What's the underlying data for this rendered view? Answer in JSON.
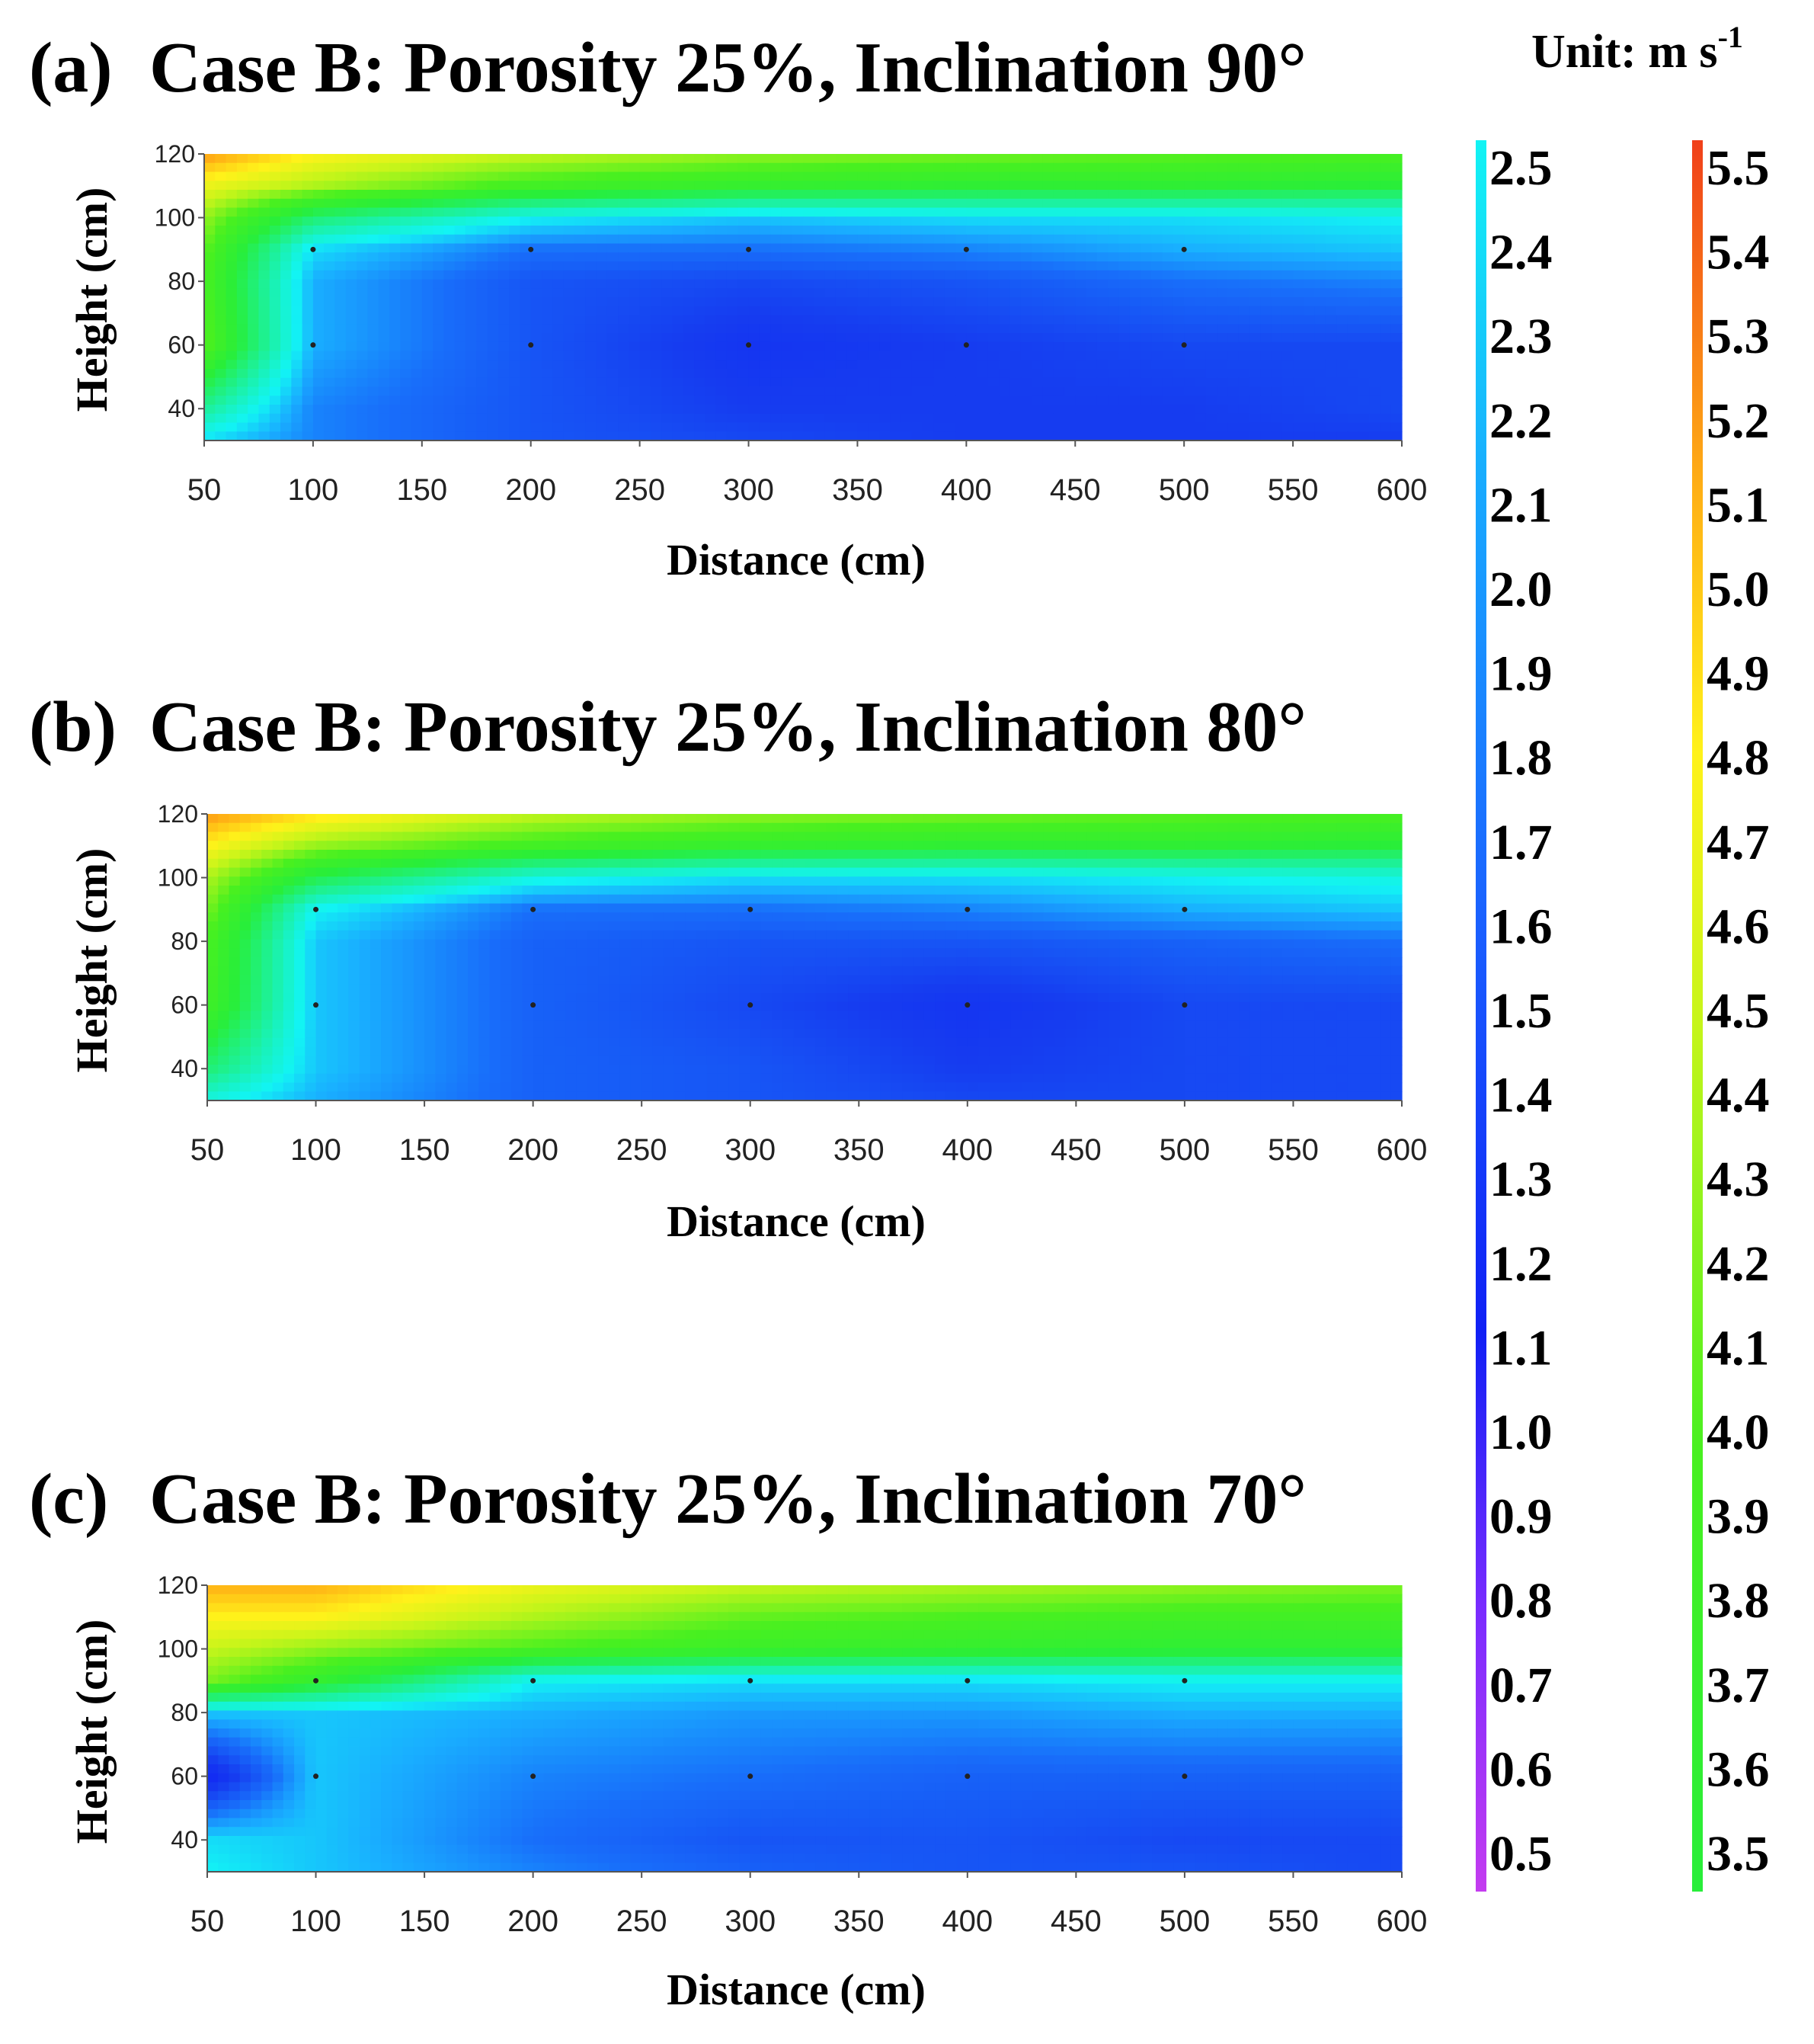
{
  "figure": {
    "unit_label": "Unit: m s",
    "unit_exponent": "-1"
  },
  "colorbars": {
    "low": {
      "ticks": [
        "2.5",
        "2.4",
        "2.3",
        "2.2",
        "2.1",
        "2.0",
        "1.9",
        "1.8",
        "1.7",
        "1.6",
        "1.5",
        "1.4",
        "1.3",
        "1.2",
        "1.1",
        "1.0",
        "0.9",
        "0.8",
        "0.7",
        "0.6",
        "0.5"
      ],
      "range": [
        0.5,
        2.5
      ]
    },
    "high": {
      "ticks": [
        "5.5",
        "5.4",
        "5.3",
        "5.2",
        "5.1",
        "5.0",
        "4.9",
        "4.8",
        "4.7",
        "4.6",
        "4.5",
        "4.4",
        "4.3",
        "4.2",
        "4.1",
        "4.0",
        "3.9",
        "3.8",
        "3.7",
        "3.6",
        "3.5"
      ],
      "range": [
        3.5,
        5.5
      ]
    }
  },
  "chart_data": [
    {
      "type": "heatmap",
      "panel_label": "(a)",
      "title": "Case B: Porosity 25%, Inclination 90°",
      "xlabel": "Distance (cm)",
      "ylabel": "Height (cm)",
      "xticks": [
        "50",
        "100",
        "150",
        "200",
        "250",
        "300",
        "350",
        "400",
        "450",
        "500",
        "550",
        "600"
      ],
      "yticks": [
        "120",
        "100",
        "80",
        "60",
        "40"
      ],
      "xlim": [
        50,
        600
      ],
      "ylim": [
        30,
        120
      ],
      "x": [
        50,
        100,
        200,
        300,
        400,
        500,
        600
      ],
      "y": [
        120,
        110,
        100,
        90,
        80,
        60,
        40,
        30
      ],
      "z": [
        [
          5.2,
          4.8,
          4.5,
          4.3,
          4.2,
          4.1,
          4.0
        ],
        [
          4.7,
          4.4,
          3.9,
          3.7,
          3.6,
          3.6,
          3.5
        ],
        [
          4.3,
          3.2,
          2.5,
          2.3,
          2.4,
          2.4,
          2.5
        ],
        [
          4.1,
          2.4,
          1.9,
          1.9,
          2.0,
          2.2,
          2.3
        ],
        [
          4.0,
          2.2,
          1.7,
          1.6,
          1.7,
          1.9,
          2.0
        ],
        [
          4.1,
          2.2,
          1.7,
          1.4,
          1.5,
          1.6,
          1.6
        ],
        [
          3.0,
          2.0,
          1.7,
          1.5,
          1.5,
          1.5,
          1.6
        ],
        [
          2.4,
          2.0,
          1.7,
          1.6,
          1.5,
          1.5,
          1.5
        ]
      ]
    },
    {
      "type": "heatmap",
      "panel_label": "(b)",
      "title": "Case B: Porosity 25%, Inclination 80°",
      "xlabel": "Distance (cm)",
      "ylabel": "Height (cm)",
      "xticks": [
        "50",
        "100",
        "150",
        "200",
        "250",
        "300",
        "350",
        "400",
        "450",
        "500",
        "550",
        "600"
      ],
      "yticks": [
        "120",
        "100",
        "80",
        "60",
        "40"
      ],
      "xlim": [
        50,
        600
      ],
      "ylim": [
        30,
        120
      ],
      "x": [
        50,
        100,
        200,
        300,
        400,
        500,
        600
      ],
      "y": [
        120,
        110,
        100,
        90,
        80,
        60,
        40,
        30
      ],
      "z": [
        [
          5.2,
          4.9,
          4.5,
          4.3,
          4.2,
          4.1,
          4.0
        ],
        [
          4.8,
          4.3,
          3.9,
          3.7,
          3.6,
          3.6,
          3.5
        ],
        [
          4.4,
          3.4,
          2.6,
          2.4,
          2.4,
          2.5,
          2.6
        ],
        [
          4.2,
          2.5,
          1.9,
          1.9,
          2.0,
          2.2,
          2.3
        ],
        [
          4.0,
          2.3,
          1.8,
          1.7,
          1.7,
          1.8,
          1.9
        ],
        [
          3.9,
          2.3,
          1.8,
          1.6,
          1.4,
          1.6,
          1.6
        ],
        [
          3.2,
          2.3,
          1.8,
          1.7,
          1.5,
          1.6,
          1.6
        ],
        [
          2.6,
          2.2,
          1.8,
          1.7,
          1.6,
          1.6,
          1.6
        ]
      ]
    },
    {
      "type": "heatmap",
      "panel_label": "(c)",
      "title": "Case B: Porosity 25%, Inclination 70°",
      "xlabel": "Distance (cm)",
      "ylabel": "Height (cm)",
      "xticks": [
        "50",
        "100",
        "150",
        "200",
        "250",
        "300",
        "350",
        "400",
        "450",
        "500",
        "550",
        "600"
      ],
      "yticks": [
        "120",
        "100",
        "80",
        "60",
        "40"
      ],
      "xlim": [
        50,
        600
      ],
      "ylim": [
        30,
        120
      ],
      "x": [
        50,
        100,
        200,
        300,
        400,
        500,
        600
      ],
      "y": [
        120,
        110,
        100,
        90,
        80,
        60,
        40,
        30
      ],
      "z": [
        [
          5.1,
          5.1,
          4.7,
          4.5,
          4.4,
          4.3,
          4.2
        ],
        [
          4.8,
          4.8,
          4.4,
          4.1,
          4.0,
          3.9,
          3.9
        ],
        [
          4.5,
          4.3,
          4.0,
          3.8,
          3.7,
          3.6,
          3.6
        ],
        [
          4.2,
          3.7,
          2.5,
          2.4,
          2.4,
          2.5,
          2.5
        ],
        [
          2.3,
          2.3,
          2.2,
          2.1,
          2.1,
          2.2,
          2.2
        ],
        [
          1.2,
          2.3,
          2.0,
          1.9,
          1.8,
          1.8,
          1.8
        ],
        [
          2.4,
          2.3,
          1.9,
          1.7,
          1.7,
          1.6,
          1.6
        ],
        [
          2.5,
          2.3,
          2.0,
          1.8,
          1.7,
          1.7,
          1.6
        ]
      ]
    }
  ]
}
